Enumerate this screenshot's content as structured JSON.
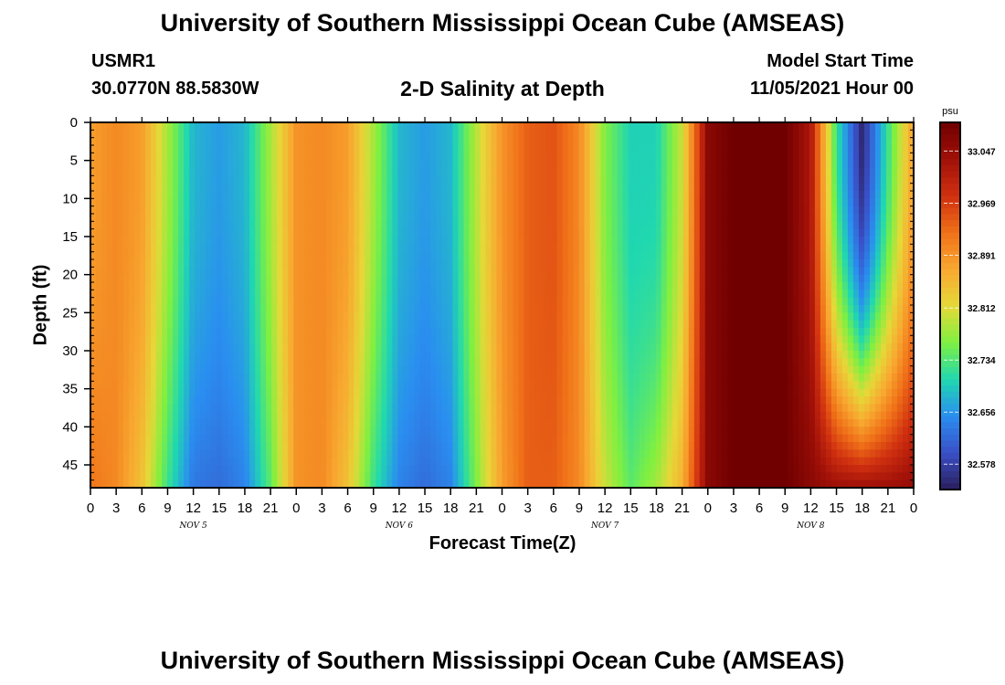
{
  "header": {
    "title": "University of Southern Mississippi Ocean Cube (AMSEAS)",
    "station": "USMR1",
    "coords": "30.0770N  88.5830W",
    "subtitle": "2-D Salinity at Depth",
    "model_start_label": "Model Start Time",
    "model_start_value": "11/05/2021 Hour 00",
    "footer_title": "University of Southern Mississippi Ocean Cube (AMSEAS)"
  },
  "chart_data": {
    "type": "heatmap",
    "title": "2-D Salinity at Depth",
    "xlabel": "Forecast Time(Z)",
    "ylabel": "Depth (ft)",
    "x_range_hours": [
      0,
      96
    ],
    "y_range_ft": [
      0,
      48
    ],
    "y_inverted": true,
    "x_tick_labels": [
      "0",
      "3",
      "6",
      "9",
      "12",
      "15",
      "18",
      "21",
      "0",
      "3",
      "6",
      "9",
      "12",
      "15",
      "18",
      "21",
      "0",
      "3",
      "6",
      "9",
      "12",
      "15",
      "18",
      "21",
      "0",
      "3",
      "6",
      "9",
      "12",
      "15",
      "18",
      "21",
      "0"
    ],
    "day_labels": [
      "NOV 5",
      "NOV 6",
      "NOV 7",
      "NOV 8"
    ],
    "y_tick_labels": [
      "0",
      "5",
      "10",
      "15",
      "20",
      "25",
      "30",
      "35",
      "40",
      "45"
    ],
    "colorbar": {
      "unit": "psu",
      "range": [
        32.54,
        33.09
      ],
      "tick_labels": [
        "33.047",
        "32.969",
        "32.891",
        "32.812",
        "32.734",
        "32.656",
        "32.578"
      ],
      "colors": [
        "#2a1e5c",
        "#3a50c8",
        "#2a8ef0",
        "#20d8b0",
        "#7ff040",
        "#e6d838",
        "#f8a830",
        "#f07018",
        "#d03010",
        "#a01008",
        "#700000"
      ]
    },
    "surface_profile": {
      "hours": [
        0,
        3,
        6,
        9,
        12,
        15,
        18,
        21,
        24,
        27,
        30,
        33,
        36,
        39,
        42,
        45,
        48,
        51,
        54,
        57,
        60,
        63,
        66,
        69,
        72,
        75,
        78,
        81,
        84,
        87,
        90,
        93,
        96
      ],
      "psu_surface": [
        32.88,
        32.9,
        32.88,
        32.78,
        32.68,
        32.66,
        32.68,
        32.78,
        32.89,
        32.9,
        32.88,
        32.78,
        32.68,
        32.66,
        32.68,
        32.79,
        32.89,
        32.94,
        32.95,
        32.9,
        32.76,
        32.7,
        32.7,
        32.8,
        33.06,
        33.09,
        33.09,
        33.09,
        33.02,
        32.72,
        32.55,
        32.72,
        32.88
      ],
      "psu_bottom": [
        32.92,
        32.9,
        32.84,
        32.72,
        32.63,
        32.62,
        32.64,
        32.74,
        32.89,
        32.9,
        32.84,
        32.72,
        32.64,
        32.62,
        32.64,
        32.76,
        32.88,
        32.94,
        32.94,
        32.9,
        32.8,
        32.74,
        32.78,
        32.86,
        33.06,
        33.09,
        33.09,
        33.09,
        33.06,
        33.04,
        33.04,
        33.04,
        33.05
      ]
    }
  }
}
